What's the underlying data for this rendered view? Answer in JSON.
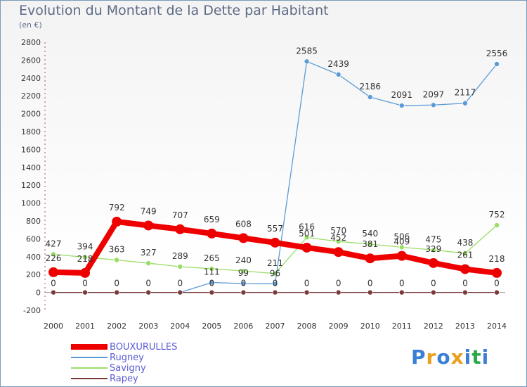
{
  "chart_data": {
    "type": "line",
    "title": "Evolution du Montant de la Dette par Habitant",
    "subtitle": "(en €)",
    "x": [
      "2000",
      "2001",
      "2002",
      "2003",
      "2004",
      "2005",
      "2006",
      "2007",
      "2008",
      "2009",
      "2010",
      "2011",
      "2012",
      "2013",
      "2014"
    ],
    "ylim": [
      -200,
      2800
    ],
    "yticks": [
      -200,
      0,
      200,
      400,
      600,
      800,
      1000,
      1200,
      1400,
      1600,
      1800,
      2000,
      2200,
      2400,
      2600,
      2800
    ],
    "grid": false,
    "legend_position": "bottom-left",
    "series": [
      {
        "name": "BOUXURULLES",
        "color": "#ee0000",
        "values": [
          226,
          218,
          792,
          749,
          707,
          659,
          608,
          557,
          501,
          452,
          381,
          409,
          329,
          261,
          218
        ]
      },
      {
        "name": "Rugney",
        "color": "#5b9bd5",
        "values": [
          0,
          0,
          0,
          0,
          0,
          111,
          99,
          96,
          2585,
          2439,
          2186,
          2091,
          2097,
          2117,
          2556
        ]
      },
      {
        "name": "Savigny",
        "color": "#99dd66",
        "values": [
          427,
          394,
          363,
          327,
          289,
          265,
          240,
          211,
          616,
          570,
          540,
          506,
          475,
          438,
          752
        ]
      },
      {
        "name": "Rapey",
        "color": "#7a3a3a",
        "values": [
          0,
          0,
          0,
          0,
          0,
          0,
          0,
          0,
          0,
          0,
          0,
          0,
          0,
          0,
          0
        ]
      }
    ],
    "data_labels": {
      "BOUXURULLES": [
        "226",
        "218",
        "792",
        "749",
        "707",
        "659",
        "608",
        "557",
        "501",
        "452",
        "381",
        "409",
        "329",
        "261",
        "218"
      ],
      "Rugney": [
        "",
        "",
        "",
        "",
        "",
        "111",
        "99",
        "96",
        "2585",
        "2439",
        "2186",
        "2091",
        "2097",
        "2117",
        "2556"
      ],
      "Savigny": [
        "427",
        "394",
        "363",
        "327",
        "289",
        "265",
        "240",
        "211",
        "616",
        "570",
        "540",
        "506",
        "475",
        "438",
        "752"
      ],
      "Rapey": [
        "0",
        "0",
        "0",
        "0",
        "0",
        "0",
        "0",
        "0",
        "0",
        "0",
        "0",
        "0",
        "0",
        "0",
        "0"
      ]
    }
  },
  "logo": {
    "text": "Proxiti",
    "colors": [
      "#3b7fd4",
      "#e8a020",
      "#3b7fd4",
      "#e8a020",
      "#3b7fd4",
      "#2aa84a",
      "#3b7fd4"
    ]
  }
}
